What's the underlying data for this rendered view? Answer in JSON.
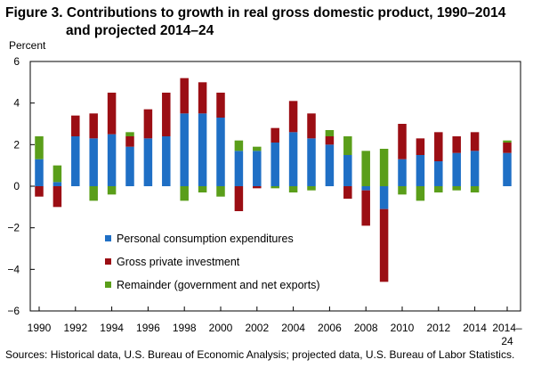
{
  "chart_data": {
    "type": "bar",
    "stacked": true,
    "title_line1": "Figure 3. Contributions to growth in real gross domestic product, 1990–2014",
    "title_line2": "and projected 2014–24",
    "ylabel": "Percent",
    "xlabel": "",
    "ylim": [
      -6,
      6
    ],
    "yticks": [
      -6,
      -4,
      -2,
      0,
      2,
      4,
      6
    ],
    "categories": [
      "1990",
      "1991",
      "1992",
      "1993",
      "1994",
      "1995",
      "1996",
      "1997",
      "1998",
      "1999",
      "2000",
      "2001",
      "2002",
      "2003",
      "2004",
      "2005",
      "2006",
      "2007",
      "2008",
      "2009",
      "2010",
      "2011",
      "2012",
      "2013",
      "2014",
      "2014–24"
    ],
    "xtick_labels": [
      {
        "category": "1990",
        "label": "1990"
      },
      {
        "category": "1992",
        "label": "1992"
      },
      {
        "category": "1994",
        "label": "1994"
      },
      {
        "category": "1996",
        "label": "1996"
      },
      {
        "category": "1998",
        "label": "1998"
      },
      {
        "category": "2000",
        "label": "2000"
      },
      {
        "category": "2002",
        "label": "2002"
      },
      {
        "category": "2004",
        "label": "2004"
      },
      {
        "category": "2006",
        "label": "2006"
      },
      {
        "category": "2008",
        "label": "2008"
      },
      {
        "category": "2010",
        "label": "2010"
      },
      {
        "category": "2012",
        "label": "2012"
      },
      {
        "category": "2014",
        "label": "2014"
      },
      {
        "category": "2014–24",
        "label": "2014–24"
      }
    ],
    "series": [
      {
        "name": "Personal consumption expenditures",
        "color": "#1F6FC5",
        "values": [
          1.3,
          0.2,
          2.4,
          2.3,
          2.5,
          1.9,
          2.3,
          2.4,
          3.5,
          3.5,
          3.3,
          1.7,
          1.7,
          2.1,
          2.6,
          2.3,
          2.0,
          1.5,
          -0.2,
          -1.1,
          1.3,
          1.5,
          1.2,
          1.6,
          1.7,
          1.6
        ]
      },
      {
        "name": "Gross private investment",
        "color": "#9B0E14",
        "values": [
          -0.5,
          -1.0,
          1.0,
          1.2,
          2.0,
          0.5,
          1.4,
          2.1,
          1.7,
          1.5,
          1.2,
          -1.2,
          -0.1,
          0.7,
          1.5,
          1.2,
          0.4,
          -0.6,
          -1.7,
          -3.5,
          1.7,
          0.8,
          1.4,
          0.8,
          0.9,
          0.5
        ]
      },
      {
        "name": "Remainder (government and net exports)",
        "color": "#5A9E1A",
        "values": [
          1.1,
          0.8,
          0.0,
          -0.7,
          -0.4,
          0.2,
          0.0,
          0.0,
          -0.7,
          -0.3,
          -0.5,
          0.5,
          0.2,
          -0.1,
          -0.3,
          -0.2,
          0.3,
          0.9,
          1.7,
          1.8,
          -0.4,
          -0.7,
          -0.3,
          -0.2,
          -0.3,
          0.1
        ]
      }
    ],
    "legend_position": "inside-bottom-left",
    "grid": false
  },
  "source_note": "Sources: Historical data, U.S. Bureau of Economic Analysis; projected data, U.S. Bureau of Labor Statistics."
}
